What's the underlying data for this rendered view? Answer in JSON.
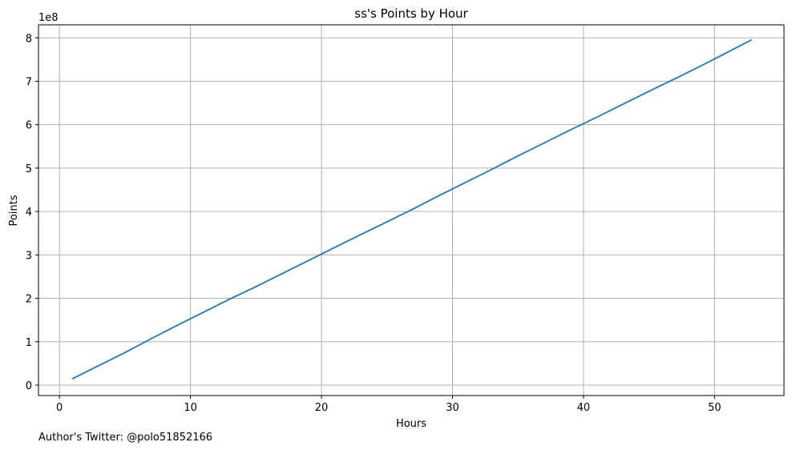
{
  "chart_data": {
    "type": "line",
    "title": "ss's Points by Hour",
    "xlabel": "Hours",
    "ylabel": "Points",
    "y_offset_label": "1e8",
    "xlim": [
      -1.6,
      55.3
    ],
    "ylim": [
      -0.24,
      8.3
    ],
    "x_ticks": [
      0,
      10,
      20,
      30,
      40,
      50
    ],
    "x_tick_labels": [
      "0",
      "10",
      "20",
      "30",
      "40",
      "50"
    ],
    "y_ticks": [
      0,
      1,
      2,
      3,
      4,
      5,
      6,
      7,
      8
    ],
    "y_tick_labels": [
      "0",
      "1",
      "2",
      "3",
      "4",
      "5",
      "6",
      "7",
      "8"
    ],
    "grid": true,
    "series": [
      {
        "color": "#1f77b4",
        "x": [
          1,
          3,
          5,
          7,
          9,
          11,
          13,
          15,
          17,
          19,
          21,
          23,
          25,
          27,
          29,
          31,
          33,
          35,
          37,
          39,
          41,
          43,
          45,
          47,
          49,
          51,
          52.8
        ],
        "values": [
          0.15,
          0.45,
          0.75,
          1.07,
          1.38,
          1.68,
          1.98,
          2.27,
          2.57,
          2.87,
          3.17,
          3.47,
          3.76,
          4.06,
          4.37,
          4.67,
          4.97,
          5.28,
          5.58,
          5.88,
          6.17,
          6.47,
          6.77,
          7.06,
          7.36,
          7.67,
          7.95
        ]
      }
    ]
  },
  "footer": {
    "note": "Author's Twitter: @polo51852166"
  }
}
